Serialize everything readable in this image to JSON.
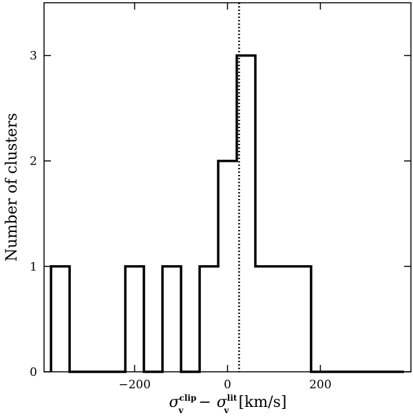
{
  "chart_data": {
    "type": "bar",
    "subtype": "step-histogram",
    "bin_edges": [
      -380,
      -340,
      -300,
      -260,
      -220,
      -180,
      -140,
      -100,
      -60,
      -20,
      20,
      60,
      100,
      140,
      180,
      220,
      260,
      300,
      340,
      380
    ],
    "values": [
      1,
      0,
      0,
      0,
      1,
      0,
      1,
      0,
      1,
      2,
      3,
      1,
      1,
      1,
      0,
      0,
      0,
      0,
      0
    ],
    "xlim": [
      -395,
      395
    ],
    "ylim": [
      0,
      3.5
    ],
    "x_ticks": [
      -200,
      0,
      200
    ],
    "x_tick_labels": [
      "−200",
      "0",
      "200"
    ],
    "y_ticks": [
      0,
      1,
      2,
      3
    ],
    "y_tick_labels": [
      "0",
      "1",
      "2",
      "3"
    ],
    "reference_line": {
      "x": 25,
      "style": "dotted"
    },
    "ylabel": "Number of clusters",
    "xlabel": {
      "sym1": "σ",
      "sup1": "clip",
      "sub1": "v",
      "minus": "−",
      "sym2": "σ",
      "sup2": "lit",
      "sub2": "v",
      "unit": "[km/s]"
    },
    "title": "",
    "grid": false,
    "legend": "none"
  }
}
